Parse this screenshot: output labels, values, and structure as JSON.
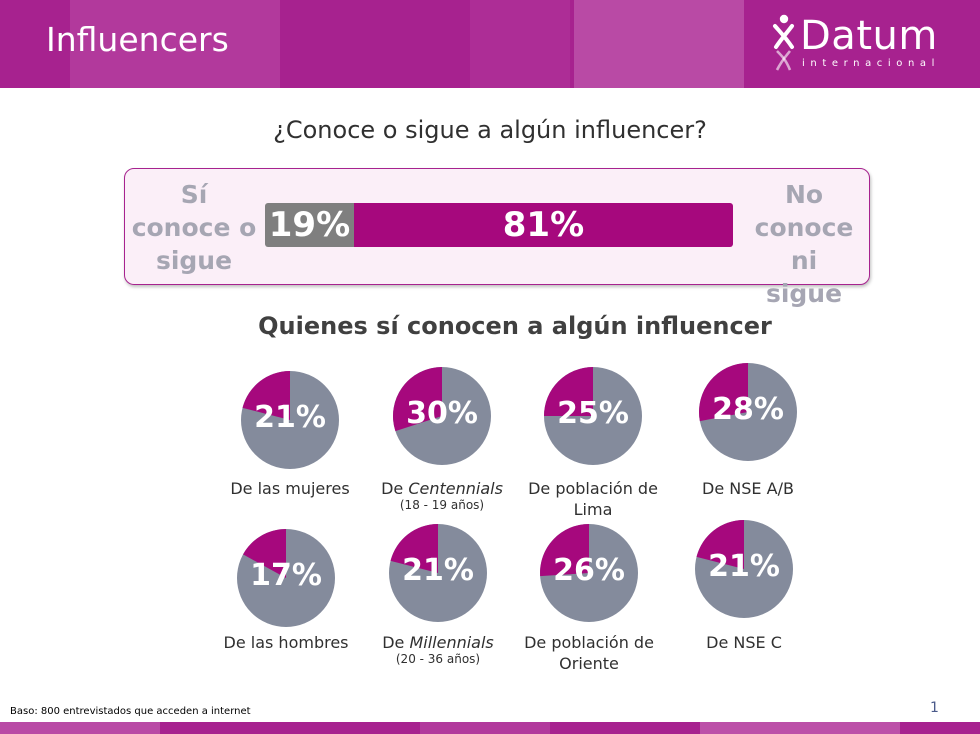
{
  "header": {
    "title": "Influencers",
    "logo_text": "Datum",
    "logo_sub": "internacional",
    "color": "#a7228f"
  },
  "chart_data": [
    {
      "type": "bar",
      "orientation": "horizontal-stacked",
      "title": "¿Conoce o sigue a algún influencer?",
      "categories": [
        "Sí conoce o sigue",
        "No conoce ni sigue"
      ],
      "values": [
        19,
        81
      ],
      "value_labels": [
        "19%",
        "81%"
      ],
      "colors": [
        "#7f7f7f",
        "#a6087d"
      ],
      "left_label_lines": [
        "Sí",
        "conoce o",
        "sigue"
      ],
      "right_label_lines": [
        "No",
        "conoce ni",
        "sigue"
      ]
    },
    {
      "type": "pie",
      "title": "Quienes sí conocen a algún influencer",
      "colors": {
        "share": "#a6087d",
        "rest": "#848b9c"
      },
      "slices": [
        {
          "value": 21,
          "pct_label": "21%",
          "label": "De las mujeres",
          "sub": ""
        },
        {
          "value": 30,
          "pct_label": "30%",
          "label_pre": "De ",
          "label_italic": "Centennials",
          "sub": "(18 - 19 años)"
        },
        {
          "value": 25,
          "pct_label": "25%",
          "label_lines": [
            "De población de",
            "Lima"
          ],
          "sub": ""
        },
        {
          "value": 28,
          "pct_label": "28%",
          "label": "De NSE A/B",
          "sub": ""
        },
        {
          "value": 17,
          "pct_label": "17%",
          "label": "De las hombres",
          "sub": ""
        },
        {
          "value": 21,
          "pct_label": "21%",
          "label_pre": "De ",
          "label_italic": "Millennials",
          "sub": "(20 - 36 años)"
        },
        {
          "value": 26,
          "pct_label": "26%",
          "label_lines": [
            "De población de",
            "Oriente"
          ],
          "sub": ""
        },
        {
          "value": 21,
          "pct_label": "21%",
          "label": "De NSE C",
          "sub": ""
        }
      ]
    }
  ],
  "footer": {
    "base": "Baso: 800 entrevistados que acceden a internet",
    "page": "1"
  }
}
